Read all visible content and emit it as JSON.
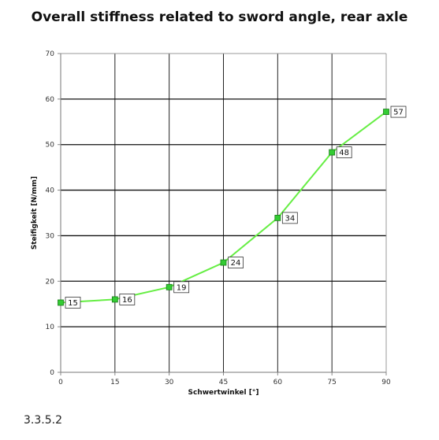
{
  "chart_data": {
    "type": "line",
    "title": "Overall stiffness related to sword angle, rear axle",
    "xlabel": "Schwertwinkel  [°]",
    "ylabel": "Steifigkeit [N/mm]",
    "x": [
      0,
      15,
      30,
      45,
      60,
      75,
      90
    ],
    "series": [
      {
        "values": [
          15.3,
          16.0,
          18.7,
          24.1,
          33.9,
          48.3,
          57.2
        ],
        "data_labels": [
          "15",
          "16",
          "19",
          "24",
          "34",
          "48",
          "57"
        ],
        "color": "#66ee44",
        "marker_color": "#33cc33"
      }
    ],
    "xlim": [
      0,
      90
    ],
    "ylim": [
      0,
      70
    ],
    "xticks": [
      0,
      15,
      30,
      45,
      60,
      75,
      90
    ],
    "yticks": [
      0,
      10,
      20,
      30,
      40,
      50,
      60,
      70
    ],
    "grid": true,
    "legend": "none"
  },
  "caption": "3.3.5.2"
}
